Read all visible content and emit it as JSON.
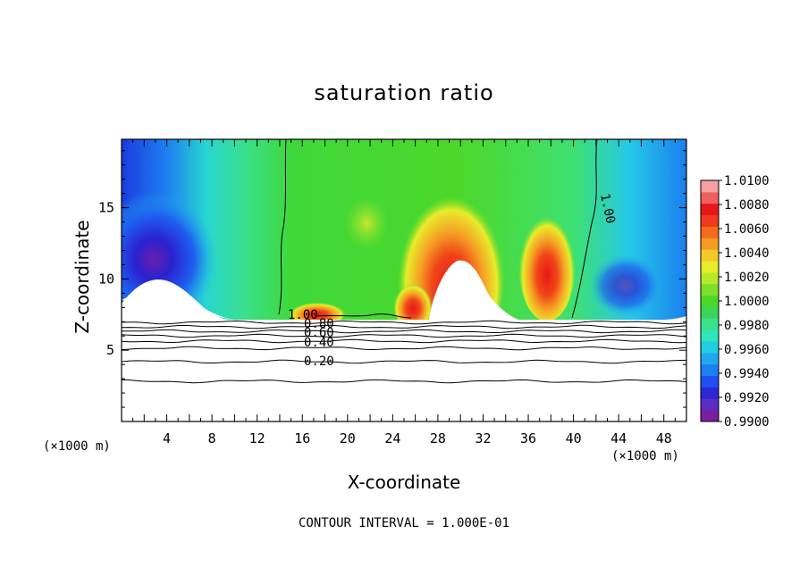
{
  "chart_data": {
    "type": "heatmap",
    "title": "saturation ratio",
    "xlabel": "X-coordinate",
    "ylabel": "Z-coordinate",
    "x_unit": "(×1000 m)",
    "x_unit_right": "(×1000 m)",
    "xlim": [
      0,
      50
    ],
    "ylim": [
      0,
      19.8
    ],
    "x_ticks": [
      "4",
      "8",
      "12",
      "16",
      "20",
      "24",
      "28",
      "32",
      "36",
      "40",
      "44",
      "48"
    ],
    "y_ticks": [
      "5",
      "10",
      "15"
    ],
    "colorbar": {
      "labels": [
        "1.0100",
        "1.0080",
        "1.0060",
        "1.0040",
        "1.0020",
        "1.0000",
        "0.9980",
        "0.9960",
        "0.9940",
        "0.9920",
        "0.9900"
      ],
      "range": [
        0.99,
        1.01
      ],
      "colors": [
        "#7a1f9e",
        "#5a2cc0",
        "#2f27d6",
        "#1e4ff0",
        "#1c7ff0",
        "#1fa8f0",
        "#22cde0",
        "#2ee6b8",
        "#3ae08a",
        "#3bd55a",
        "#4cd82a",
        "#7ee02a",
        "#b8e82a",
        "#e8ec2a",
        "#f4c82a",
        "#f59a24",
        "#f26b1e",
        "#ee3a1a",
        "#e81818",
        "#f06060",
        "#f4a0a0"
      ]
    },
    "contour_interval": "CONTOUR INTERVAL = 1.000E-01",
    "contour_labels": [
      "1.00",
      "0.80",
      "0.60",
      "0.40",
      "0.20",
      "1.00"
    ]
  }
}
